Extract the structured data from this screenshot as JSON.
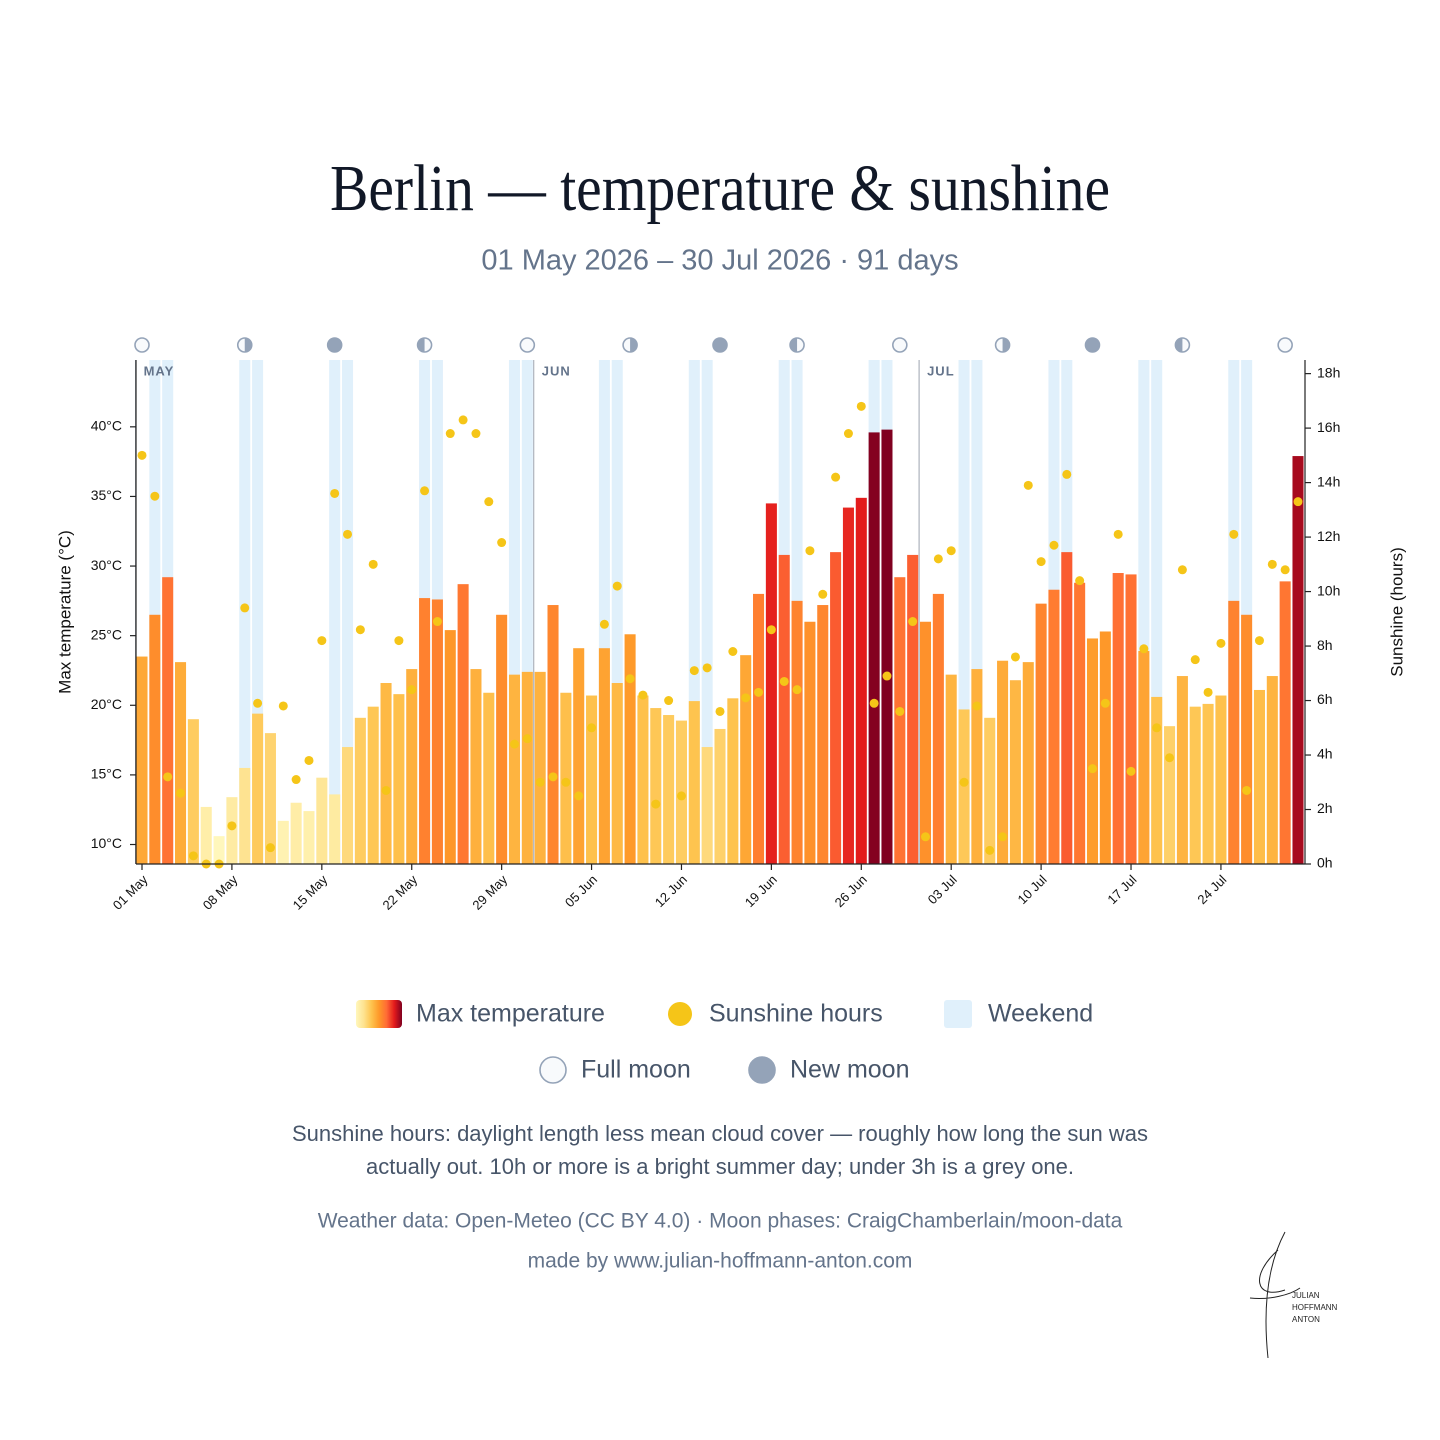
{
  "chart_data": {
    "type": "bar",
    "title": "Berlin — temperature & sunshine",
    "subtitle": "01 May 2026 – 30 Jul 2026 · 91 days",
    "y_label": "Max temperature (°C)",
    "y2_label": "Sunshine (hours)",
    "categories": [
      "01 May",
      null,
      null,
      null,
      null,
      null,
      null,
      "08 May",
      null,
      null,
      null,
      null,
      null,
      null,
      "15 May",
      null,
      null,
      null,
      null,
      null,
      null,
      "22 May",
      null,
      null,
      null,
      null,
      null,
      null,
      "29 May",
      null,
      null,
      null,
      null,
      null,
      null,
      "05 Jun",
      null,
      null,
      null,
      null,
      null,
      null,
      "12 Jun",
      null,
      null,
      null,
      null,
      null,
      null,
      "19 Jun",
      null,
      null,
      null,
      null,
      null,
      null,
      "26 Jun",
      null,
      null,
      null,
      null,
      null,
      null,
      "03 Jul",
      null,
      null,
      null,
      null,
      null,
      null,
      "10 Jul",
      null,
      null,
      null,
      null,
      null,
      null,
      "17 Jul",
      null,
      null,
      null,
      null,
      null,
      null,
      "24 Jul",
      null,
      null,
      null,
      null,
      null,
      null
    ],
    "series": [
      {
        "name": "Max temperature",
        "colors": [
          "#fff7bc",
          "#fee391",
          "#fec44f",
          "#fe9929",
          "#ff6b35",
          "#e31a1c",
          "#800020"
        ],
        "values": [
          23.5,
          26.5,
          29.2,
          23.1,
          19.0,
          12.7,
          10.6,
          13.4,
          15.5,
          19.4,
          18.0,
          11.7,
          13.0,
          12.4,
          14.8,
          13.6,
          17.0,
          19.1,
          19.9,
          21.6,
          20.8,
          22.6,
          27.7,
          27.6,
          25.4,
          28.7,
          22.6,
          20.9,
          26.5,
          22.2,
          22.4,
          22.4,
          27.2,
          20.9,
          24.1,
          20.7,
          24.1,
          21.6,
          25.1,
          20.7,
          19.8,
          19.3,
          18.9,
          20.3,
          17.0,
          18.3,
          20.5,
          23.6,
          28.0,
          34.5,
          30.8,
          27.5,
          26.0,
          27.2,
          31.0,
          34.2,
          34.9,
          39.6,
          39.8,
          29.2,
          30.8,
          26.0,
          28.0,
          22.2,
          19.7,
          22.6,
          19.1,
          23.2,
          21.8,
          23.1,
          27.3,
          28.3,
          31.0,
          28.8,
          24.8,
          25.3,
          29.5,
          29.4,
          23.9,
          20.6,
          18.5,
          22.1,
          19.9,
          20.1,
          20.7,
          27.5,
          26.5,
          21.1,
          22.1,
          28.9,
          37.9
        ]
      },
      {
        "name": "Sunshine hours",
        "color": "#f5c518",
        "axis": "y2",
        "values": [
          15.0,
          13.5,
          3.2,
          2.6,
          0.3,
          0.0,
          0.0,
          1.4,
          9.4,
          5.9,
          0.6,
          5.8,
          3.1,
          3.8,
          8.2,
          13.6,
          12.1,
          8.6,
          11.0,
          2.7,
          8.2,
          6.4,
          13.7,
          8.9,
          15.8,
          16.3,
          15.8,
          13.3,
          11.8,
          4.4,
          4.6,
          3.0,
          3.2,
          3.0,
          2.5,
          5.0,
          8.8,
          10.2,
          6.8,
          6.2,
          2.2,
          6.0,
          2.5,
          7.1,
          7.2,
          5.6,
          7.8,
          6.1,
          6.3,
          8.6,
          6.7,
          6.4,
          11.5,
          9.9,
          14.2,
          15.8,
          16.8,
          5.9,
          6.9,
          5.6,
          8.9,
          1.0,
          11.2,
          11.5,
          3.0,
          5.8,
          0.5,
          1.0,
          7.6,
          13.9,
          11.1,
          11.7,
          14.3,
          10.4,
          3.5,
          5.9,
          12.1,
          3.4,
          7.9,
          5.0,
          3.9,
          10.8,
          7.5,
          6.3,
          8.1,
          12.1,
          2.7,
          8.2,
          11.0,
          10.8,
          13.3
        ]
      }
    ],
    "weekend": [
      false,
      true,
      true,
      false,
      false,
      false,
      false,
      false,
      true,
      true,
      false,
      false,
      false,
      false,
      false,
      true,
      true,
      false,
      false,
      false,
      false,
      false,
      true,
      true,
      false,
      false,
      false,
      false,
      false,
      true,
      true,
      false,
      false,
      false,
      false,
      false,
      true,
      true,
      false,
      false,
      false,
      false,
      false,
      true,
      true,
      false,
      false,
      false,
      false,
      false,
      true,
      true,
      false,
      false,
      false,
      false,
      false,
      true,
      true,
      false,
      false,
      false,
      false,
      false,
      true,
      true,
      false,
      false,
      false,
      false,
      false,
      true,
      true,
      false,
      false,
      false,
      false,
      false,
      true,
      true,
      false,
      false,
      false,
      false,
      false,
      true,
      true,
      false,
      false,
      false,
      false
    ],
    "moon": [
      "full",
      null,
      null,
      null,
      null,
      null,
      null,
      null,
      "last",
      null,
      null,
      null,
      null,
      null,
      null,
      "new",
      null,
      null,
      null,
      null,
      null,
      null,
      "first",
      null,
      null,
      null,
      null,
      null,
      null,
      null,
      "full",
      null,
      null,
      null,
      null,
      null,
      null,
      null,
      "last",
      null,
      null,
      null,
      null,
      null,
      null,
      "new",
      null,
      null,
      null,
      null,
      null,
      "first",
      null,
      null,
      null,
      null,
      null,
      null,
      null,
      "full",
      null,
      null,
      null,
      null,
      null,
      null,
      null,
      "last",
      null,
      null,
      null,
      null,
      null,
      null,
      "new",
      null,
      null,
      null,
      null,
      null,
      null,
      "first",
      null,
      null,
      null,
      null,
      null,
      null,
      null,
      "full",
      null
    ],
    "months": [
      "MAY",
      null,
      null,
      null,
      null,
      null,
      null,
      null,
      null,
      null,
      null,
      null,
      null,
      null,
      null,
      null,
      null,
      null,
      null,
      null,
      null,
      null,
      null,
      null,
      null,
      null,
      null,
      null,
      null,
      null,
      null,
      "JUN",
      null,
      null,
      null,
      null,
      null,
      null,
      null,
      null,
      null,
      null,
      null,
      null,
      null,
      null,
      null,
      null,
      null,
      null,
      null,
      null,
      null,
      null,
      null,
      null,
      null,
      null,
      null,
      null,
      null,
      "JUL",
      null,
      null,
      null,
      null,
      null,
      null,
      null,
      null,
      null,
      null,
      null,
      null,
      null,
      null,
      null,
      null,
      null,
      null,
      null,
      null,
      null,
      null,
      null,
      null,
      null,
      null,
      null,
      null,
      null
    ],
    "ylim": [
      8.6,
      44.8
    ],
    "yticks": [
      {
        "value": 10,
        "label": "10°C"
      },
      {
        "value": 15,
        "label": "15°C"
      },
      {
        "value": 20,
        "label": "20°C"
      },
      {
        "value": 25,
        "label": "25°C"
      },
      {
        "value": 30,
        "label": "30°C"
      },
      {
        "value": 35,
        "label": "35°C"
      },
      {
        "value": 40,
        "label": "40°C"
      }
    ],
    "y2lim": [
      0,
      18.5
    ],
    "y2ticks": [
      {
        "value": 0,
        "label": "0h"
      },
      {
        "value": 2,
        "label": "2h"
      },
      {
        "value": 4,
        "label": "4h"
      },
      {
        "value": 6,
        "label": "6h"
      },
      {
        "value": 8,
        "label": "8h"
      },
      {
        "value": 10,
        "label": "10h"
      },
      {
        "value": 12,
        "label": "12h"
      },
      {
        "value": 14,
        "label": "14h"
      },
      {
        "value": 16,
        "label": "16h"
      },
      {
        "value": 18,
        "label": "18h"
      }
    ],
    "weekend_color": "#e0f0fb",
    "moon_color": "#94a3b8",
    "legend": {
      "weekend": "Weekend",
      "full": "Full moon",
      "new": "New moon"
    },
    "note": [
      "Sunshine hours: daylight length less mean cloud cover — roughly how long the sun was",
      "actually out. 10h or more is a bright summer day; under 3h is a grey one."
    ],
    "source": "Weather data: Open-Meteo (CC BY 4.0) · Moon phases: CraigChamberlain/moon-data",
    "credit": "made by www.julian-hoffmann-anton.com",
    "logo": [
      "JULIAN",
      "HOFFMANN",
      "ANTON"
    ]
  }
}
